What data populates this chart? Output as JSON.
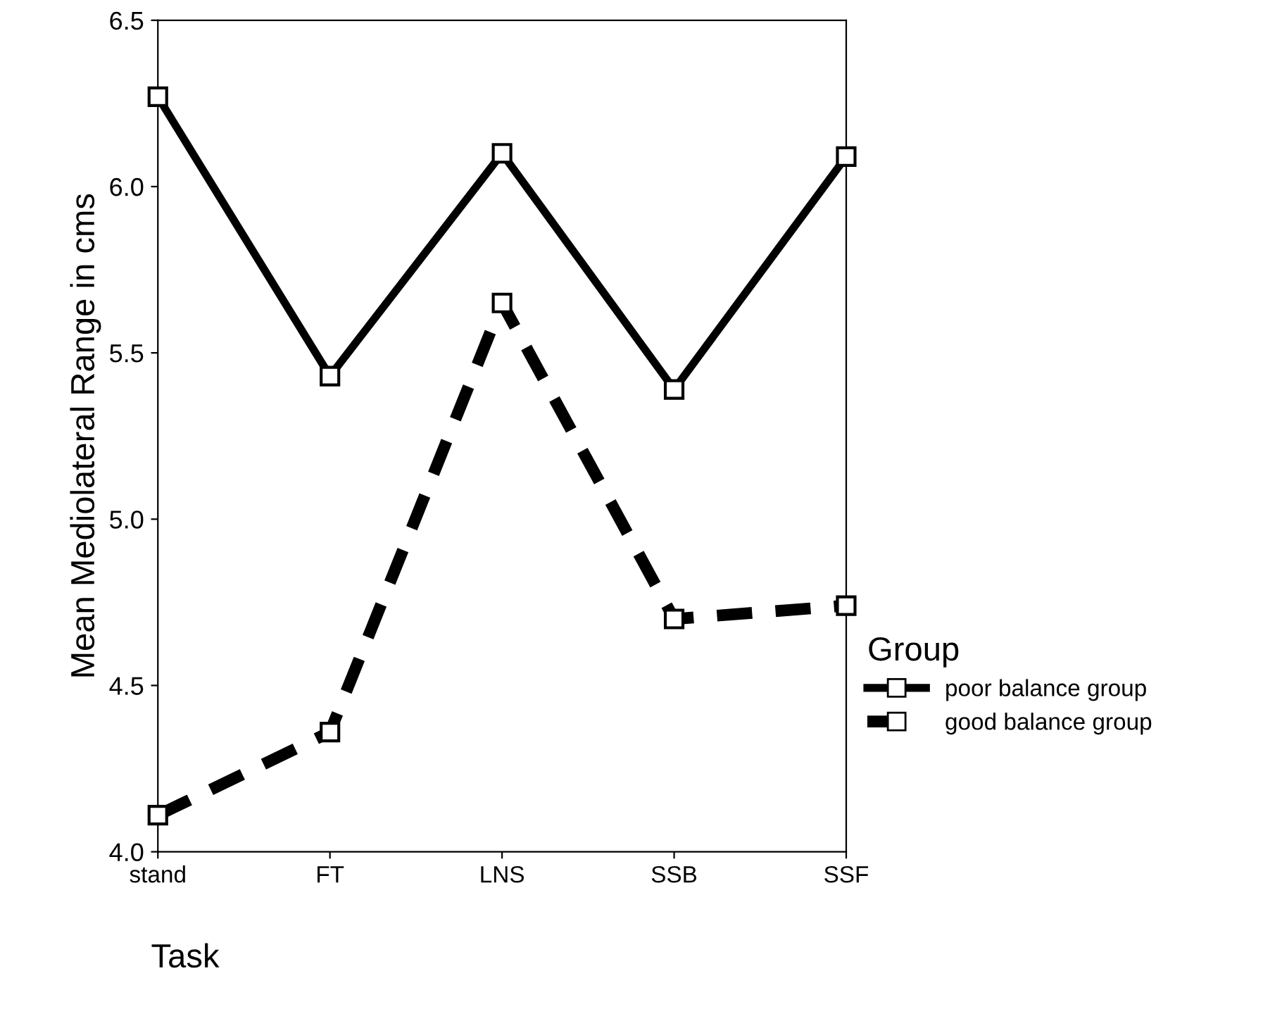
{
  "chart_data": {
    "type": "line",
    "xlabel": "Task",
    "ylabel": "Mean Mediolateral Range in cms",
    "legend_title": "Group",
    "categories": [
      "stand",
      "FT",
      "LNS",
      "SSB",
      "SSF"
    ],
    "series": [
      {
        "name": "poor balance group",
        "color": "#000000",
        "line_style": "solid",
        "values": [
          6.27,
          5.43,
          6.1,
          5.39,
          6.09
        ]
      },
      {
        "name": "good balance group",
        "color": "#000000",
        "line_style": "dashed",
        "values": [
          4.11,
          4.36,
          5.65,
          4.7,
          4.74
        ]
      }
    ],
    "ylim": [
      4.0,
      6.5
    ],
    "yticks": [
      {
        "value": 4.0,
        "label": "4.0"
      },
      {
        "value": 4.5,
        "label": "4.5"
      },
      {
        "value": 5.0,
        "label": "5.0"
      },
      {
        "value": 5.5,
        "label": "5.5"
      },
      {
        "value": 6.0,
        "label": "6.0"
      },
      {
        "value": 6.5,
        "label": "6.5"
      }
    ],
    "marker": "square",
    "legend": "right",
    "grid": false
  }
}
